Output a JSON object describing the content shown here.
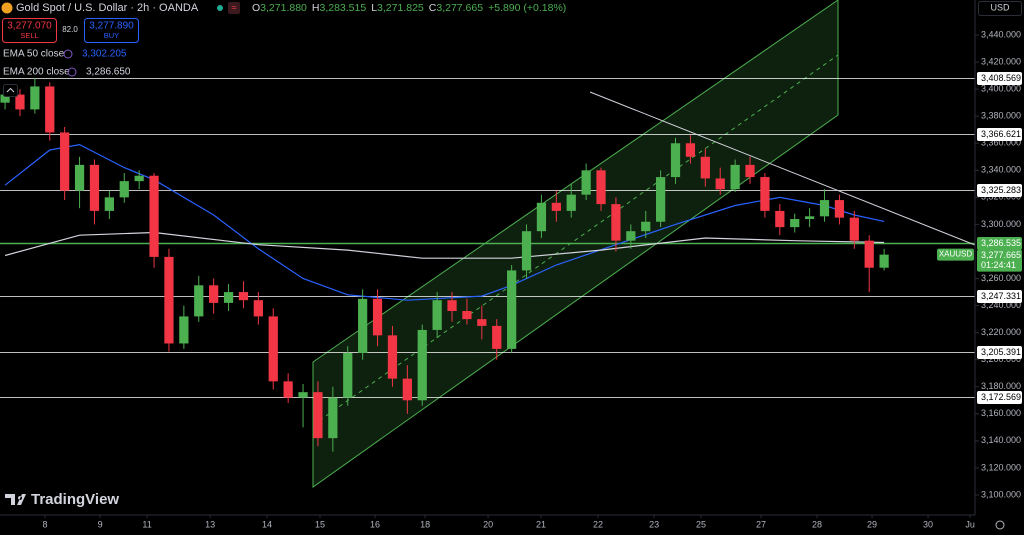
{
  "header": {
    "symbol": "Gold Spot / U.S. Dollar · 2h · OANDA",
    "open_label": "O",
    "open": "3,271.880",
    "high_label": "H",
    "high": "3,283.515",
    "low_label": "L",
    "low": "3,271.825",
    "close_label": "C",
    "close": "3,277.665",
    "change": "+5.890 (+0.18%)"
  },
  "trade": {
    "sell_price": "3,277.070",
    "sell": "SELL",
    "spread": "82.0",
    "buy_price": "3,277.890",
    "buy": "BUY"
  },
  "currency": "USD",
  "price_tag": {
    "symbol": "XAUUSD",
    "countdown": "01:24:41"
  },
  "brand": "TradingView",
  "chart_data": {
    "type": "candlestick",
    "grid": false,
    "up_color": "#4caf50",
    "down_color": "#f23645",
    "xlim": [
      -0.34,
      65.1
    ],
    "ylim": [
      3085.2,
      3465.9
    ],
    "xticks": [
      {
        "value": 2.68,
        "label": "8"
      },
      {
        "value": 6.38,
        "label": "9"
      },
      {
        "value": 9.53,
        "label": "11"
      },
      {
        "value": 13.76,
        "label": "13"
      },
      {
        "value": 17.58,
        "label": "14"
      },
      {
        "value": 21.14,
        "label": "15"
      },
      {
        "value": 24.83,
        "label": "16"
      },
      {
        "value": 28.19,
        "label": "18"
      },
      {
        "value": 32.42,
        "label": "20"
      },
      {
        "value": 35.97,
        "label": "21"
      },
      {
        "value": 39.8,
        "label": "22"
      },
      {
        "value": 43.56,
        "label": "23"
      },
      {
        "value": 46.71,
        "label": "25"
      },
      {
        "value": 50.74,
        "label": "27"
      },
      {
        "value": 54.5,
        "label": "28"
      },
      {
        "value": 58.19,
        "label": "29"
      },
      {
        "value": 61.95,
        "label": "30"
      },
      {
        "value": 64.77,
        "label": "Ju"
      }
    ],
    "yticks": [
      {
        "value": 3100,
        "label": "3,100.000"
      },
      {
        "value": 3120,
        "label": "3,120.000"
      },
      {
        "value": 3140,
        "label": "3,140.000"
      },
      {
        "value": 3160,
        "label": "3,160.000"
      },
      {
        "value": 3180,
        "label": "3,180.000"
      },
      {
        "value": 3200,
        "label": "3,200.000"
      },
      {
        "value": 3220,
        "label": "3,220.000"
      },
      {
        "value": 3240,
        "label": "3,240.000"
      },
      {
        "value": 3260,
        "label": "3,260.000"
      },
      {
        "value": 3300,
        "label": "3,300.000"
      },
      {
        "value": 3320,
        "label": "3,320.000"
      },
      {
        "value": 3340,
        "label": "3,340.000"
      },
      {
        "value": 3360,
        "label": "3,360.000"
      },
      {
        "value": 3380,
        "label": "3,380.000"
      },
      {
        "value": 3400,
        "label": "3,400.000"
      },
      {
        "value": 3420,
        "label": "3,420.000"
      },
      {
        "value": 3440,
        "label": "3,440.000"
      }
    ],
    "x": [
      0,
      1,
      2,
      3,
      4,
      5,
      6,
      7,
      8,
      9,
      10,
      11,
      12,
      13,
      14,
      15,
      16,
      17,
      18,
      19,
      20,
      21,
      22,
      23,
      24,
      25,
      26,
      27,
      28,
      29,
      30,
      31,
      32,
      33,
      34,
      35,
      36,
      37,
      38,
      39,
      40,
      41,
      42,
      43,
      44,
      45,
      46,
      47,
      48,
      49,
      50,
      51,
      52,
      53,
      54,
      55,
      56,
      57,
      58,
      59
    ],
    "open": [
      3390,
      3396,
      3385,
      3402,
      3368,
      3325,
      3344,
      3310,
      3320,
      3332,
      3336,
      3276,
      3212,
      3232,
      3255,
      3242,
      3250,
      3244,
      3232,
      3184,
      3172,
      3176,
      3142,
      3172,
      3205,
      3245,
      3218,
      3186,
      3170,
      3222,
      3244,
      3236,
      3230,
      3225,
      3208,
      3266,
      3295,
      3316,
      3310,
      3322,
      3340,
      3315,
      3288,
      3295,
      3302,
      3335,
      3360,
      3350,
      3334,
      3326,
      3344,
      3335,
      3310,
      3298,
      3304,
      3306,
      3318,
      3305,
      3288,
      3268
    ],
    "high": [
      3402,
      3400,
      3408,
      3405,
      3372,
      3350,
      3348,
      3325,
      3338,
      3340,
      3338,
      3282,
      3240,
      3262,
      3260,
      3256,
      3258,
      3250,
      3238,
      3190,
      3182,
      3184,
      3180,
      3210,
      3252,
      3252,
      3225,
      3196,
      3226,
      3250,
      3250,
      3245,
      3240,
      3230,
      3270,
      3300,
      3322,
      3325,
      3330,
      3345,
      3342,
      3320,
      3300,
      3310,
      3340,
      3364,
      3366,
      3356,
      3342,
      3348,
      3350,
      3338,
      3315,
      3308,
      3312,
      3326,
      3322,
      3310,
      3292,
      3282
    ],
    "low": [
      3385,
      3380,
      3382,
      3362,
      3318,
      3312,
      3300,
      3304,
      3316,
      3326,
      3268,
      3206,
      3208,
      3228,
      3234,
      3236,
      3238,
      3226,
      3178,
      3168,
      3150,
      3136,
      3132,
      3166,
      3200,
      3210,
      3180,
      3160,
      3166,
      3216,
      3228,
      3226,
      3215,
      3200,
      3205,
      3260,
      3290,
      3302,
      3305,
      3318,
      3310,
      3280,
      3282,
      3290,
      3298,
      3330,
      3345,
      3328,
      3322,
      3324,
      3330,
      3305,
      3292,
      3294,
      3298,
      3302,
      3300,
      3282,
      3250,
      3266
    ],
    "close": [
      3396,
      3385,
      3402,
      3368,
      3325,
      3344,
      3310,
      3320,
      3332,
      3336,
      3276,
      3212,
      3232,
      3255,
      3242,
      3250,
      3244,
      3232,
      3184,
      3172,
      3176,
      3142,
      3172,
      3205,
      3245,
      3218,
      3186,
      3170,
      3222,
      3244,
      3236,
      3230,
      3225,
      3208,
      3266,
      3295,
      3316,
      3310,
      3322,
      3340,
      3315,
      3288,
      3295,
      3302,
      3335,
      3360,
      3350,
      3334,
      3326,
      3344,
      3335,
      3310,
      3298,
      3304,
      3306,
      3318,
      3305,
      3288,
      3268,
      3277.665
    ],
    "close_label": "3,277.665",
    "lines": [
      {
        "name": "EMA 50 close",
        "color": "#2962ff",
        "value_label": "3,302.205",
        "x": [
          0,
          3,
          5,
          8,
          10,
          14,
          17,
          20,
          23,
          27,
          32,
          34,
          37,
          41,
          45,
          49,
          52,
          55,
          57,
          59
        ],
        "values": [
          3329,
          3355,
          3359,
          3342,
          3333,
          3307,
          3282,
          3260,
          3248,
          3244,
          3247,
          3255,
          3270,
          3285,
          3300,
          3314,
          3320,
          3314,
          3307,
          3302.205
        ]
      },
      {
        "name": "EMA 200 close",
        "color": "#d1d4dc",
        "value_label": "3,286.650",
        "x": [
          0,
          5,
          10,
          17,
          23,
          28,
          34,
          40,
          47,
          53,
          59
        ],
        "values": [
          3277,
          3292,
          3294,
          3285,
          3281,
          3275,
          3275,
          3281,
          3290,
          3288,
          3286.65
        ]
      }
    ],
    "levels": [
      {
        "value": 3408.569,
        "label": "3,408.569",
        "color": "#ffffff"
      },
      {
        "value": 3366.621,
        "label": "3,366.621",
        "color": "#ffffff"
      },
      {
        "value": 3325.283,
        "label": "3,325.283",
        "color": "#ffffff"
      },
      {
        "value": 3286.535,
        "label": "3,286.535",
        "color": "#4caf50"
      },
      {
        "value": 3247.331,
        "label": "3,247.331",
        "color": "#ffffff"
      },
      {
        "value": 3205.391,
        "label": "3,205.391",
        "color": "#ffffff"
      },
      {
        "value": 3172.569,
        "label": "3,172.569",
        "color": "#ffffff"
      }
    ]
  }
}
